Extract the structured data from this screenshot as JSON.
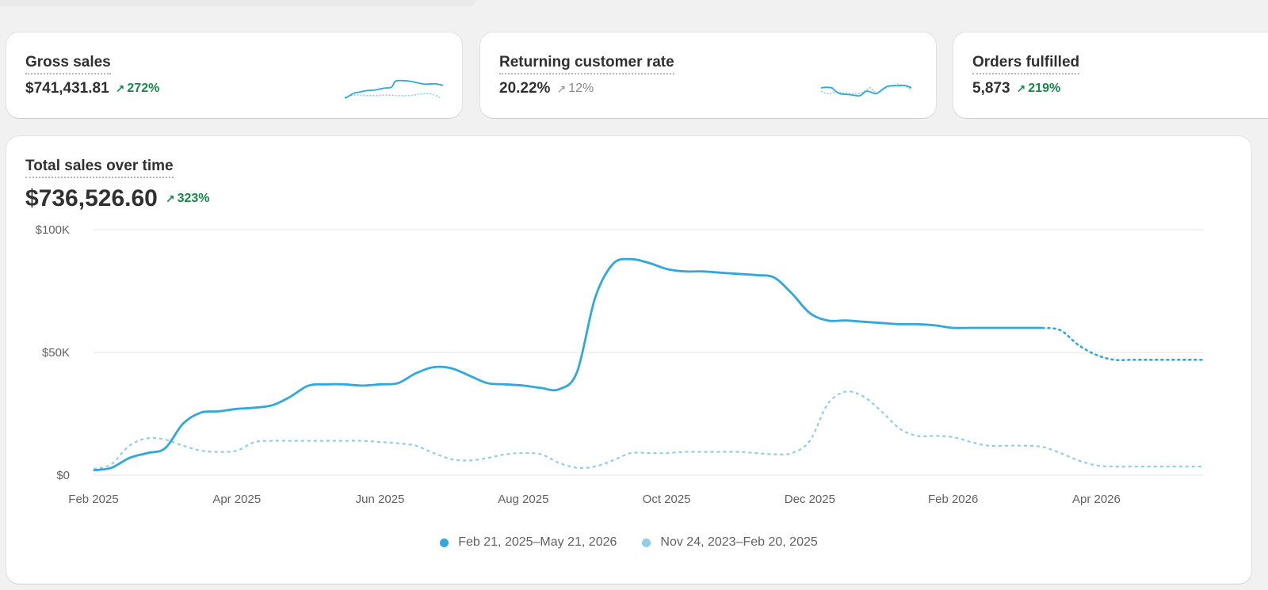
{
  "metrics": [
    {
      "title": "Gross sales",
      "value": "$741,431.81",
      "change": "272%",
      "trend": "up",
      "tone": "positive"
    },
    {
      "title": "Returning customer rate",
      "value": "20.22%",
      "change": "12%",
      "trend": "up",
      "tone": "neutral"
    },
    {
      "title": "Orders fulfilled",
      "value": "5,873",
      "change": "219%",
      "trend": "up",
      "tone": "positive"
    }
  ],
  "main": {
    "title": "Total sales over time",
    "value": "$736,526.60",
    "change": "323%"
  },
  "colors": {
    "current": "#2ea8dd",
    "previous": "#8fcdea",
    "positive": "#138a47",
    "neutral": "#8a8a8a",
    "grid": "#e6e6e6"
  },
  "chart_data": {
    "type": "line",
    "ylabel": "",
    "yticks": [
      "$0",
      "$50K",
      "$100K"
    ],
    "ylim": [
      0,
      100000
    ],
    "xticks": [
      "Feb 2025",
      "Apr 2025",
      "Jun 2025",
      "Aug 2025",
      "Oct 2025",
      "Dec 2025",
      "Feb 2026",
      "Apr 2026"
    ],
    "x": [
      0,
      0.25,
      0.5,
      0.75,
      1,
      1.25,
      1.5,
      1.75,
      2,
      2.25,
      2.5,
      2.75,
      3,
      3.25,
      3.5,
      3.75,
      4,
      4.25,
      4.5,
      4.75,
      5,
      5.25,
      5.5,
      5.75,
      6,
      6.25,
      6.5,
      6.75,
      7,
      7.25,
      7.5,
      7.75,
      8,
      8.25,
      8.5,
      8.75,
      9,
      9.25,
      9.5,
      9.75,
      10,
      10.25,
      10.5,
      10.75,
      11,
      11.25,
      11.5,
      11.75,
      12,
      12.25,
      12.5,
      12.75,
      13,
      13.25,
      13.5,
      13.75,
      14,
      14.25,
      14.5,
      14.75,
      15,
      15.25,
      15.5
    ],
    "series": [
      {
        "name": "Feb 21, 2025–May 21, 2026",
        "color": "#2ea8dd",
        "projected_from_index": 53,
        "values": [
          2000,
          3000,
          7000,
          9000,
          11000,
          21000,
          25500,
          26000,
          27000,
          27500,
          28500,
          32000,
          36500,
          37000,
          37000,
          36500,
          37000,
          37500,
          41500,
          44000,
          43500,
          40500,
          37500,
          37000,
          36500,
          35500,
          35000,
          42000,
          72000,
          86000,
          88000,
          86500,
          84000,
          83000,
          83000,
          82500,
          82000,
          81500,
          80500,
          74000,
          66000,
          63000,
          63000,
          62500,
          62000,
          61500,
          61500,
          61000,
          60000,
          60000,
          60000,
          60000,
          60000,
          60000,
          59000,
          53000,
          49000,
          47000,
          47000,
          47000,
          47000,
          47000,
          47000
        ],
        "values_note_points_visible": "line ends near Apr 2026 solid then dotted projection"
      },
      {
        "name": "Nov 24, 2023–Feb 20, 2025",
        "color": "#8fcdea",
        "values": [
          2500,
          4500,
          12000,
          15000,
          14500,
          12000,
          10000,
          9500,
          10000,
          13500,
          14000,
          14000,
          14000,
          14000,
          14000,
          14000,
          13500,
          13000,
          12000,
          9000,
          6500,
          6000,
          7000,
          8500,
          9000,
          8500,
          5000,
          3000,
          3500,
          6000,
          9000,
          9000,
          9000,
          9500,
          9500,
          9500,
          9500,
          9000,
          8500,
          9000,
          14000,
          29000,
          34000,
          32000,
          26000,
          19000,
          16000,
          16000,
          15500,
          13500,
          12000,
          12000,
          12000,
          11500,
          9000,
          6000,
          4000,
          3500,
          3500,
          3500,
          3500,
          3500,
          3500
        ]
      }
    ],
    "legend": [
      "Feb 21, 2025–May 21, 2026",
      "Nov 24, 2023–Feb 20, 2025"
    ],
    "legend_position": "bottom-center",
    "grid": true
  }
}
